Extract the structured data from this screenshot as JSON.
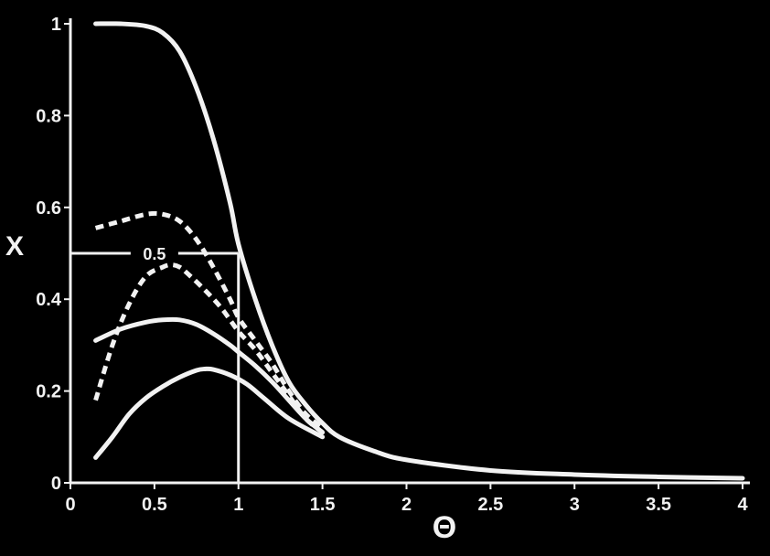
{
  "chart_data": {
    "type": "line",
    "title": "",
    "xlabel": "Θ",
    "ylabel": "X",
    "xlim": [
      0,
      4
    ],
    "ylim": [
      0,
      1
    ],
    "x_ticks": [
      "0",
      "0.5",
      "1",
      "1.5",
      "2",
      "2.5",
      "3",
      "3.5",
      "4"
    ],
    "y_ticks": [
      "0",
      "0.2",
      "0.4",
      "0.6",
      "0.8",
      "1"
    ],
    "grid": false,
    "legend": "none",
    "colors": {
      "background": "#000000",
      "foreground": "#f2f2f2"
    },
    "annotations": [
      {
        "text": "0.5",
        "x": 0.5,
        "y": 0.5,
        "guide_to": [
          1.0,
          0.5
        ]
      }
    ],
    "series": [
      {
        "style": "solid",
        "x": [
          0.15,
          0.3,
          0.45,
          0.55,
          0.65,
          0.75,
          0.85,
          0.95,
          1.0,
          1.1,
          1.2,
          1.3,
          1.4,
          1.5,
          1.6,
          1.8,
          2.0,
          2.5,
          3.0,
          3.5,
          4.0
        ],
        "y": [
          1.0,
          1.0,
          0.995,
          0.98,
          0.94,
          0.86,
          0.75,
          0.61,
          0.52,
          0.4,
          0.3,
          0.22,
          0.17,
          0.13,
          0.1,
          0.07,
          0.05,
          0.027,
          0.018,
          0.013,
          0.01
        ]
      },
      {
        "style": "dashed",
        "x": [
          0.15,
          0.3,
          0.45,
          0.55,
          0.65,
          0.75,
          0.85,
          0.95,
          1.0,
          1.1,
          1.2,
          1.3,
          1.4,
          1.5
        ],
        "y": [
          0.555,
          0.57,
          0.585,
          0.585,
          0.57,
          0.53,
          0.47,
          0.4,
          0.36,
          0.31,
          0.26,
          0.2,
          0.15,
          0.12
        ]
      },
      {
        "style": "dashed",
        "x": [
          0.15,
          0.25,
          0.35,
          0.45,
          0.55,
          0.6,
          0.65,
          0.7,
          0.8,
          0.9,
          1.0,
          1.1,
          1.2,
          1.3,
          1.4,
          1.5
        ],
        "y": [
          0.18,
          0.3,
          0.39,
          0.45,
          0.47,
          0.475,
          0.47,
          0.455,
          0.42,
          0.38,
          0.33,
          0.29,
          0.24,
          0.19,
          0.14,
          0.11
        ]
      },
      {
        "style": "solid",
        "x": [
          0.15,
          0.3,
          0.45,
          0.55,
          0.65,
          0.75,
          0.85,
          0.95,
          1.0,
          1.1,
          1.2,
          1.3,
          1.4,
          1.5
        ],
        "y": [
          0.31,
          0.335,
          0.35,
          0.355,
          0.355,
          0.345,
          0.325,
          0.3,
          0.285,
          0.255,
          0.22,
          0.18,
          0.14,
          0.11
        ]
      },
      {
        "style": "solid",
        "x": [
          0.15,
          0.25,
          0.35,
          0.45,
          0.55,
          0.65,
          0.75,
          0.8,
          0.85,
          0.95,
          1.05,
          1.15,
          1.3,
          1.5
        ],
        "y": [
          0.055,
          0.1,
          0.15,
          0.185,
          0.21,
          0.23,
          0.245,
          0.248,
          0.247,
          0.235,
          0.215,
          0.185,
          0.14,
          0.1
        ]
      }
    ]
  }
}
